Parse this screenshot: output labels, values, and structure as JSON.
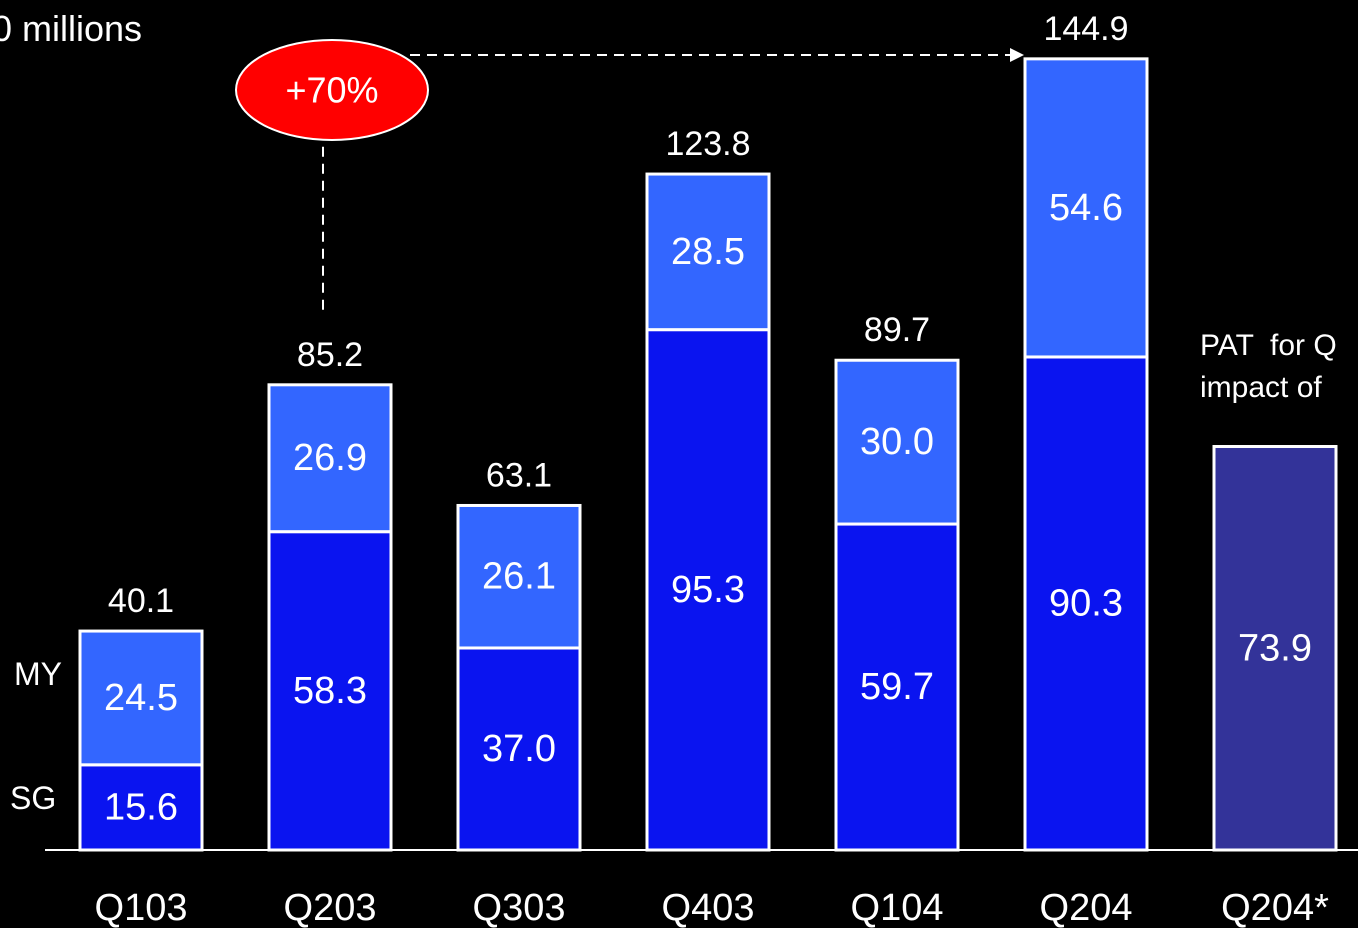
{
  "chart_data": {
    "type": "bar",
    "stacked": true,
    "unit_label": "0 millions",
    "categories": [
      "Q103",
      "Q203",
      "Q303",
      "Q403",
      "Q104",
      "Q204",
      "Q204*"
    ],
    "series": [
      {
        "name": "SG",
        "color": "#0a14f0",
        "values": [
          15.6,
          58.3,
          37.0,
          95.3,
          59.7,
          90.3,
          null
        ]
      },
      {
        "name": "MY",
        "color": "#3366ff",
        "values": [
          24.5,
          26.9,
          26.1,
          28.5,
          30.0,
          54.6,
          null
        ]
      },
      {
        "name": "",
        "color": "#333399",
        "values": [
          null,
          null,
          null,
          null,
          null,
          null,
          73.9
        ]
      }
    ],
    "segment_labels": [
      [
        "15.6",
        "24.5"
      ],
      [
        "58.3",
        "26.9"
      ],
      [
        "37.0",
        "26.1"
      ],
      [
        "95.3",
        "28.5"
      ],
      [
        "59.7",
        "30.0"
      ],
      [
        "90.3",
        "54.6"
      ],
      [
        "73.9"
      ]
    ],
    "totals": [
      40.1,
      85.2,
      63.1,
      123.8,
      89.7,
      144.9,
      null
    ],
    "total_labels": [
      "40.1",
      "85.2",
      "63.1",
      "123.8",
      "89.7",
      "144.9",
      ""
    ],
    "ylim": [
      0,
      162
    ],
    "annotation": {
      "text": "+70%",
      "color": "#ff0000",
      "from_category": "Q203",
      "to_category": "Q204"
    },
    "side_note": "PAT  for Q\nimpact of"
  }
}
